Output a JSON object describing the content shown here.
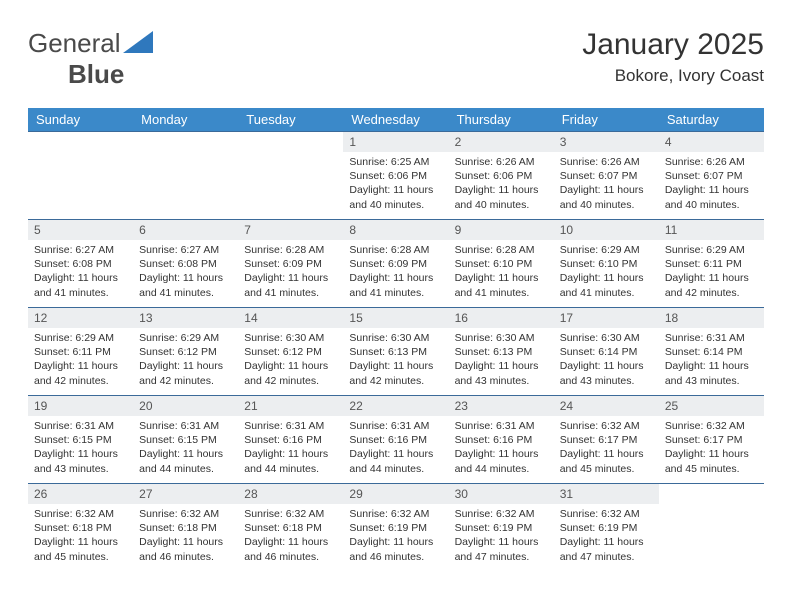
{
  "brand": {
    "part1": "General",
    "part2": "Blue"
  },
  "title": "January 2025",
  "location": "Bokore, Ivory Coast",
  "colors": {
    "header_bg": "#3b89c9",
    "header_text": "#ffffff",
    "row_border": "#3b6a99",
    "daynum_bg": "#eceef0",
    "text": "#333333",
    "logo_accent": "#2f78bd"
  },
  "weekdays": [
    "Sunday",
    "Monday",
    "Tuesday",
    "Wednesday",
    "Thursday",
    "Friday",
    "Saturday"
  ],
  "weeks": [
    [
      {
        "n": "",
        "sr": "",
        "ss": "",
        "dl": ""
      },
      {
        "n": "",
        "sr": "",
        "ss": "",
        "dl": ""
      },
      {
        "n": "",
        "sr": "",
        "ss": "",
        "dl": ""
      },
      {
        "n": "1",
        "sr": "6:25 AM",
        "ss": "6:06 PM",
        "dl": "11 hours and 40 minutes."
      },
      {
        "n": "2",
        "sr": "6:26 AM",
        "ss": "6:06 PM",
        "dl": "11 hours and 40 minutes."
      },
      {
        "n": "3",
        "sr": "6:26 AM",
        "ss": "6:07 PM",
        "dl": "11 hours and 40 minutes."
      },
      {
        "n": "4",
        "sr": "6:26 AM",
        "ss": "6:07 PM",
        "dl": "11 hours and 40 minutes."
      }
    ],
    [
      {
        "n": "5",
        "sr": "6:27 AM",
        "ss": "6:08 PM",
        "dl": "11 hours and 41 minutes."
      },
      {
        "n": "6",
        "sr": "6:27 AM",
        "ss": "6:08 PM",
        "dl": "11 hours and 41 minutes."
      },
      {
        "n": "7",
        "sr": "6:28 AM",
        "ss": "6:09 PM",
        "dl": "11 hours and 41 minutes."
      },
      {
        "n": "8",
        "sr": "6:28 AM",
        "ss": "6:09 PM",
        "dl": "11 hours and 41 minutes."
      },
      {
        "n": "9",
        "sr": "6:28 AM",
        "ss": "6:10 PM",
        "dl": "11 hours and 41 minutes."
      },
      {
        "n": "10",
        "sr": "6:29 AM",
        "ss": "6:10 PM",
        "dl": "11 hours and 41 minutes."
      },
      {
        "n": "11",
        "sr": "6:29 AM",
        "ss": "6:11 PM",
        "dl": "11 hours and 42 minutes."
      }
    ],
    [
      {
        "n": "12",
        "sr": "6:29 AM",
        "ss": "6:11 PM",
        "dl": "11 hours and 42 minutes."
      },
      {
        "n": "13",
        "sr": "6:29 AM",
        "ss": "6:12 PM",
        "dl": "11 hours and 42 minutes."
      },
      {
        "n": "14",
        "sr": "6:30 AM",
        "ss": "6:12 PM",
        "dl": "11 hours and 42 minutes."
      },
      {
        "n": "15",
        "sr": "6:30 AM",
        "ss": "6:13 PM",
        "dl": "11 hours and 42 minutes."
      },
      {
        "n": "16",
        "sr": "6:30 AM",
        "ss": "6:13 PM",
        "dl": "11 hours and 43 minutes."
      },
      {
        "n": "17",
        "sr": "6:30 AM",
        "ss": "6:14 PM",
        "dl": "11 hours and 43 minutes."
      },
      {
        "n": "18",
        "sr": "6:31 AM",
        "ss": "6:14 PM",
        "dl": "11 hours and 43 minutes."
      }
    ],
    [
      {
        "n": "19",
        "sr": "6:31 AM",
        "ss": "6:15 PM",
        "dl": "11 hours and 43 minutes."
      },
      {
        "n": "20",
        "sr": "6:31 AM",
        "ss": "6:15 PM",
        "dl": "11 hours and 44 minutes."
      },
      {
        "n": "21",
        "sr": "6:31 AM",
        "ss": "6:16 PM",
        "dl": "11 hours and 44 minutes."
      },
      {
        "n": "22",
        "sr": "6:31 AM",
        "ss": "6:16 PM",
        "dl": "11 hours and 44 minutes."
      },
      {
        "n": "23",
        "sr": "6:31 AM",
        "ss": "6:16 PM",
        "dl": "11 hours and 44 minutes."
      },
      {
        "n": "24",
        "sr": "6:32 AM",
        "ss": "6:17 PM",
        "dl": "11 hours and 45 minutes."
      },
      {
        "n": "25",
        "sr": "6:32 AM",
        "ss": "6:17 PM",
        "dl": "11 hours and 45 minutes."
      }
    ],
    [
      {
        "n": "26",
        "sr": "6:32 AM",
        "ss": "6:18 PM",
        "dl": "11 hours and 45 minutes."
      },
      {
        "n": "27",
        "sr": "6:32 AM",
        "ss": "6:18 PM",
        "dl": "11 hours and 46 minutes."
      },
      {
        "n": "28",
        "sr": "6:32 AM",
        "ss": "6:18 PM",
        "dl": "11 hours and 46 minutes."
      },
      {
        "n": "29",
        "sr": "6:32 AM",
        "ss": "6:19 PM",
        "dl": "11 hours and 46 minutes."
      },
      {
        "n": "30",
        "sr": "6:32 AM",
        "ss": "6:19 PM",
        "dl": "11 hours and 47 minutes."
      },
      {
        "n": "31",
        "sr": "6:32 AM",
        "ss": "6:19 PM",
        "dl": "11 hours and 47 minutes."
      },
      {
        "n": "",
        "sr": "",
        "ss": "",
        "dl": ""
      }
    ]
  ],
  "labels": {
    "sunrise": "Sunrise:",
    "sunset": "Sunset:",
    "daylight": "Daylight:"
  }
}
